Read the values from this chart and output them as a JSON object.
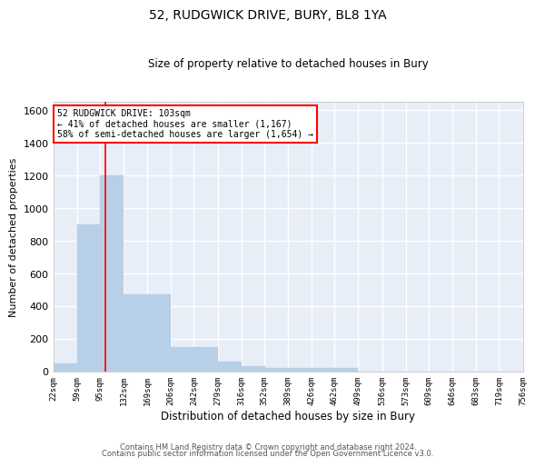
{
  "title": "52, RUDGWICK DRIVE, BURY, BL8 1YA",
  "subtitle": "Size of property relative to detached houses in Bury",
  "xlabel": "Distribution of detached houses by size in Bury",
  "ylabel": "Number of detached properties",
  "bar_color": "#b8cfe8",
  "bar_edgecolor": "#b8cfe8",
  "bg_color": "#e8eef8",
  "grid_color": "white",
  "annotation_line1": "52 RUDGWICK DRIVE: 103sqm",
  "annotation_line2": "← 41% of detached houses are smaller (1,167)",
  "annotation_line3": "58% of semi-detached houses are larger (1,654) →",
  "annotation_box_color": "red",
  "red_line_x": 103,
  "bins": [
    22,
    59,
    95,
    132,
    169,
    206,
    242,
    279,
    316,
    352,
    389,
    426,
    462,
    499,
    536,
    573,
    609,
    646,
    683,
    719,
    756
  ],
  "bar_heights": [
    50,
    900,
    1200,
    470,
    470,
    150,
    150,
    60,
    30,
    20,
    20,
    20,
    20,
    0,
    0,
    0,
    0,
    0,
    0,
    0
  ],
  "ylim": [
    0,
    1650
  ],
  "yticks": [
    0,
    200,
    400,
    600,
    800,
    1000,
    1200,
    1400,
    1600
  ],
  "footer1": "Contains HM Land Registry data © Crown copyright and database right 2024.",
  "footer2": "Contains public sector information licensed under the Open Government Licence v3.0."
}
